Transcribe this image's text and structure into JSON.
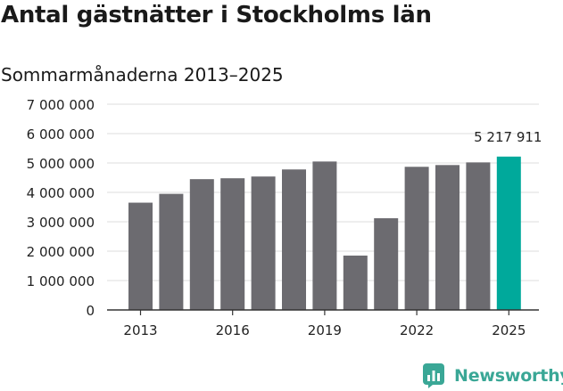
{
  "chart_data": {
    "type": "bar",
    "title": "Antal gästnätter i Stockholms län",
    "subtitle": "Sommarmånaderna 2013–2025",
    "categories": [
      "2013",
      "2014",
      "2015",
      "2016",
      "2017",
      "2018",
      "2019",
      "2020",
      "2021",
      "2022",
      "2023",
      "2024",
      "2025"
    ],
    "values": [
      3650000,
      3950000,
      4450000,
      4480000,
      4540000,
      4780000,
      5050000,
      1850000,
      3120000,
      4870000,
      4930000,
      5020000,
      5217911
    ],
    "highlight_index": 12,
    "highlight_label": "5 217 911",
    "ylim": [
      0,
      7000000
    ],
    "yticks": [
      {
        "value": 0,
        "label": "0"
      },
      {
        "value": 1000000,
        "label": "1 000 000"
      },
      {
        "value": 2000000,
        "label": "2 000 000"
      },
      {
        "value": 3000000,
        "label": "3 000 000"
      },
      {
        "value": 4000000,
        "label": "4 000 000"
      },
      {
        "value": 5000000,
        "label": "5 000 000"
      },
      {
        "value": 6000000,
        "label": "6 000 000"
      },
      {
        "value": 7000000,
        "label": "7 000 000"
      }
    ],
    "xticks": [
      "2013",
      "2016",
      "2019",
      "2022",
      "2025"
    ],
    "grid": true,
    "colors": {
      "bar": "#6c6b70",
      "highlight": "#00a99b",
      "grid": "#dddddd",
      "axis": "#333333"
    }
  },
  "brand": {
    "name": "Newsworthy",
    "icon": "bar-chart-icon",
    "color": "#3aa796"
  }
}
